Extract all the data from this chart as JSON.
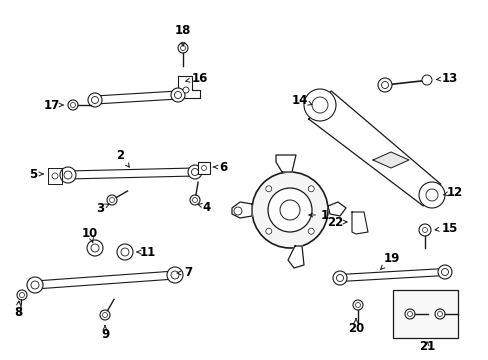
{
  "bg_color": "#ffffff",
  "line_color": "#1a1a1a",
  "text_color": "#000000",
  "gray_color": "#888888"
}
